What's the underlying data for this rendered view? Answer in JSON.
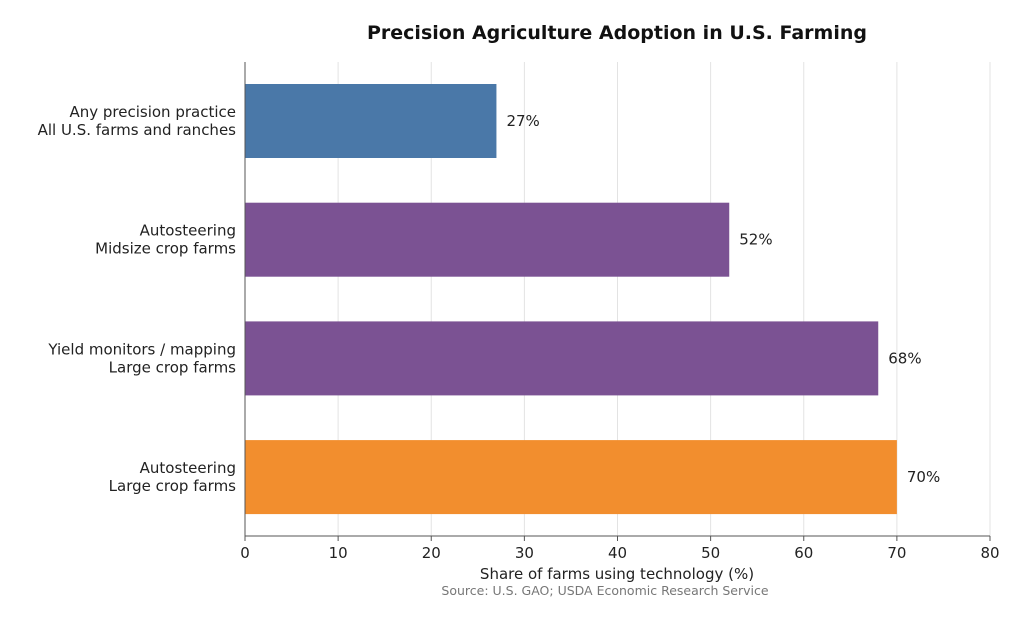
{
  "chart_data": {
    "type": "bar",
    "orientation": "horizontal",
    "title": "Precision Agriculture Adoption in U.S. Farming",
    "xlabel": "Share of farms using technology (%)",
    "source": "Source: U.S. GAO; USDA Economic Research Service",
    "xlim": [
      0,
      80
    ],
    "xticks": [
      "0",
      "10",
      "20",
      "30",
      "40",
      "50",
      "60",
      "70",
      "80"
    ],
    "grid": "vertical",
    "categories": [
      [
        "Any precision practice",
        "All U.S. farms and ranches"
      ],
      [
        "Autosteering",
        "Midsize crop farms"
      ],
      [
        "Yield monitors / mapping",
        "Large crop farms"
      ],
      [
        "Autosteering",
        "Large crop farms"
      ]
    ],
    "values": [
      27,
      52,
      68,
      70
    ],
    "value_labels": [
      "27%",
      "52%",
      "68%",
      "70%"
    ],
    "colors": [
      "#4a78a8",
      "#7b5293",
      "#7b5293",
      "#f28e2e"
    ]
  }
}
